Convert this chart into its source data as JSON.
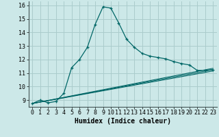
{
  "title": "",
  "xlabel": "Humidex (Indice chaleur)",
  "ylabel": "",
  "bg_color": "#cce8e8",
  "grid_color": "#aacccc",
  "line_color": "#006666",
  "xlim": [
    -0.5,
    23.5
  ],
  "ylim": [
    8.5,
    16.3
  ],
  "xticks": [
    0,
    1,
    2,
    3,
    4,
    5,
    6,
    7,
    8,
    9,
    10,
    11,
    12,
    13,
    14,
    15,
    16,
    17,
    18,
    19,
    20,
    21,
    22,
    23
  ],
  "yticks": [
    9,
    10,
    11,
    12,
    13,
    14,
    15,
    16
  ],
  "line1_x": [
    0,
    1,
    2,
    3,
    4,
    5,
    6,
    7,
    8,
    9,
    10,
    11,
    12,
    13,
    14,
    15,
    16,
    17,
    18,
    19,
    20,
    21,
    22,
    23
  ],
  "line1_y": [
    8.75,
    9.0,
    8.8,
    8.9,
    9.5,
    11.4,
    12.0,
    12.9,
    14.6,
    15.9,
    15.8,
    14.7,
    13.5,
    12.9,
    12.45,
    12.25,
    12.15,
    12.05,
    11.85,
    11.7,
    11.6,
    11.2,
    11.2,
    11.25
  ],
  "line2_x": [
    0,
    23
  ],
  "line2_y": [
    8.75,
    11.15
  ],
  "line3_x": [
    0,
    23
  ],
  "line3_y": [
    8.75,
    11.25
  ],
  "line4_x": [
    0,
    23
  ],
  "line4_y": [
    8.75,
    11.35
  ],
  "xlabel_fontsize": 7,
  "tick_fontsize": 6
}
